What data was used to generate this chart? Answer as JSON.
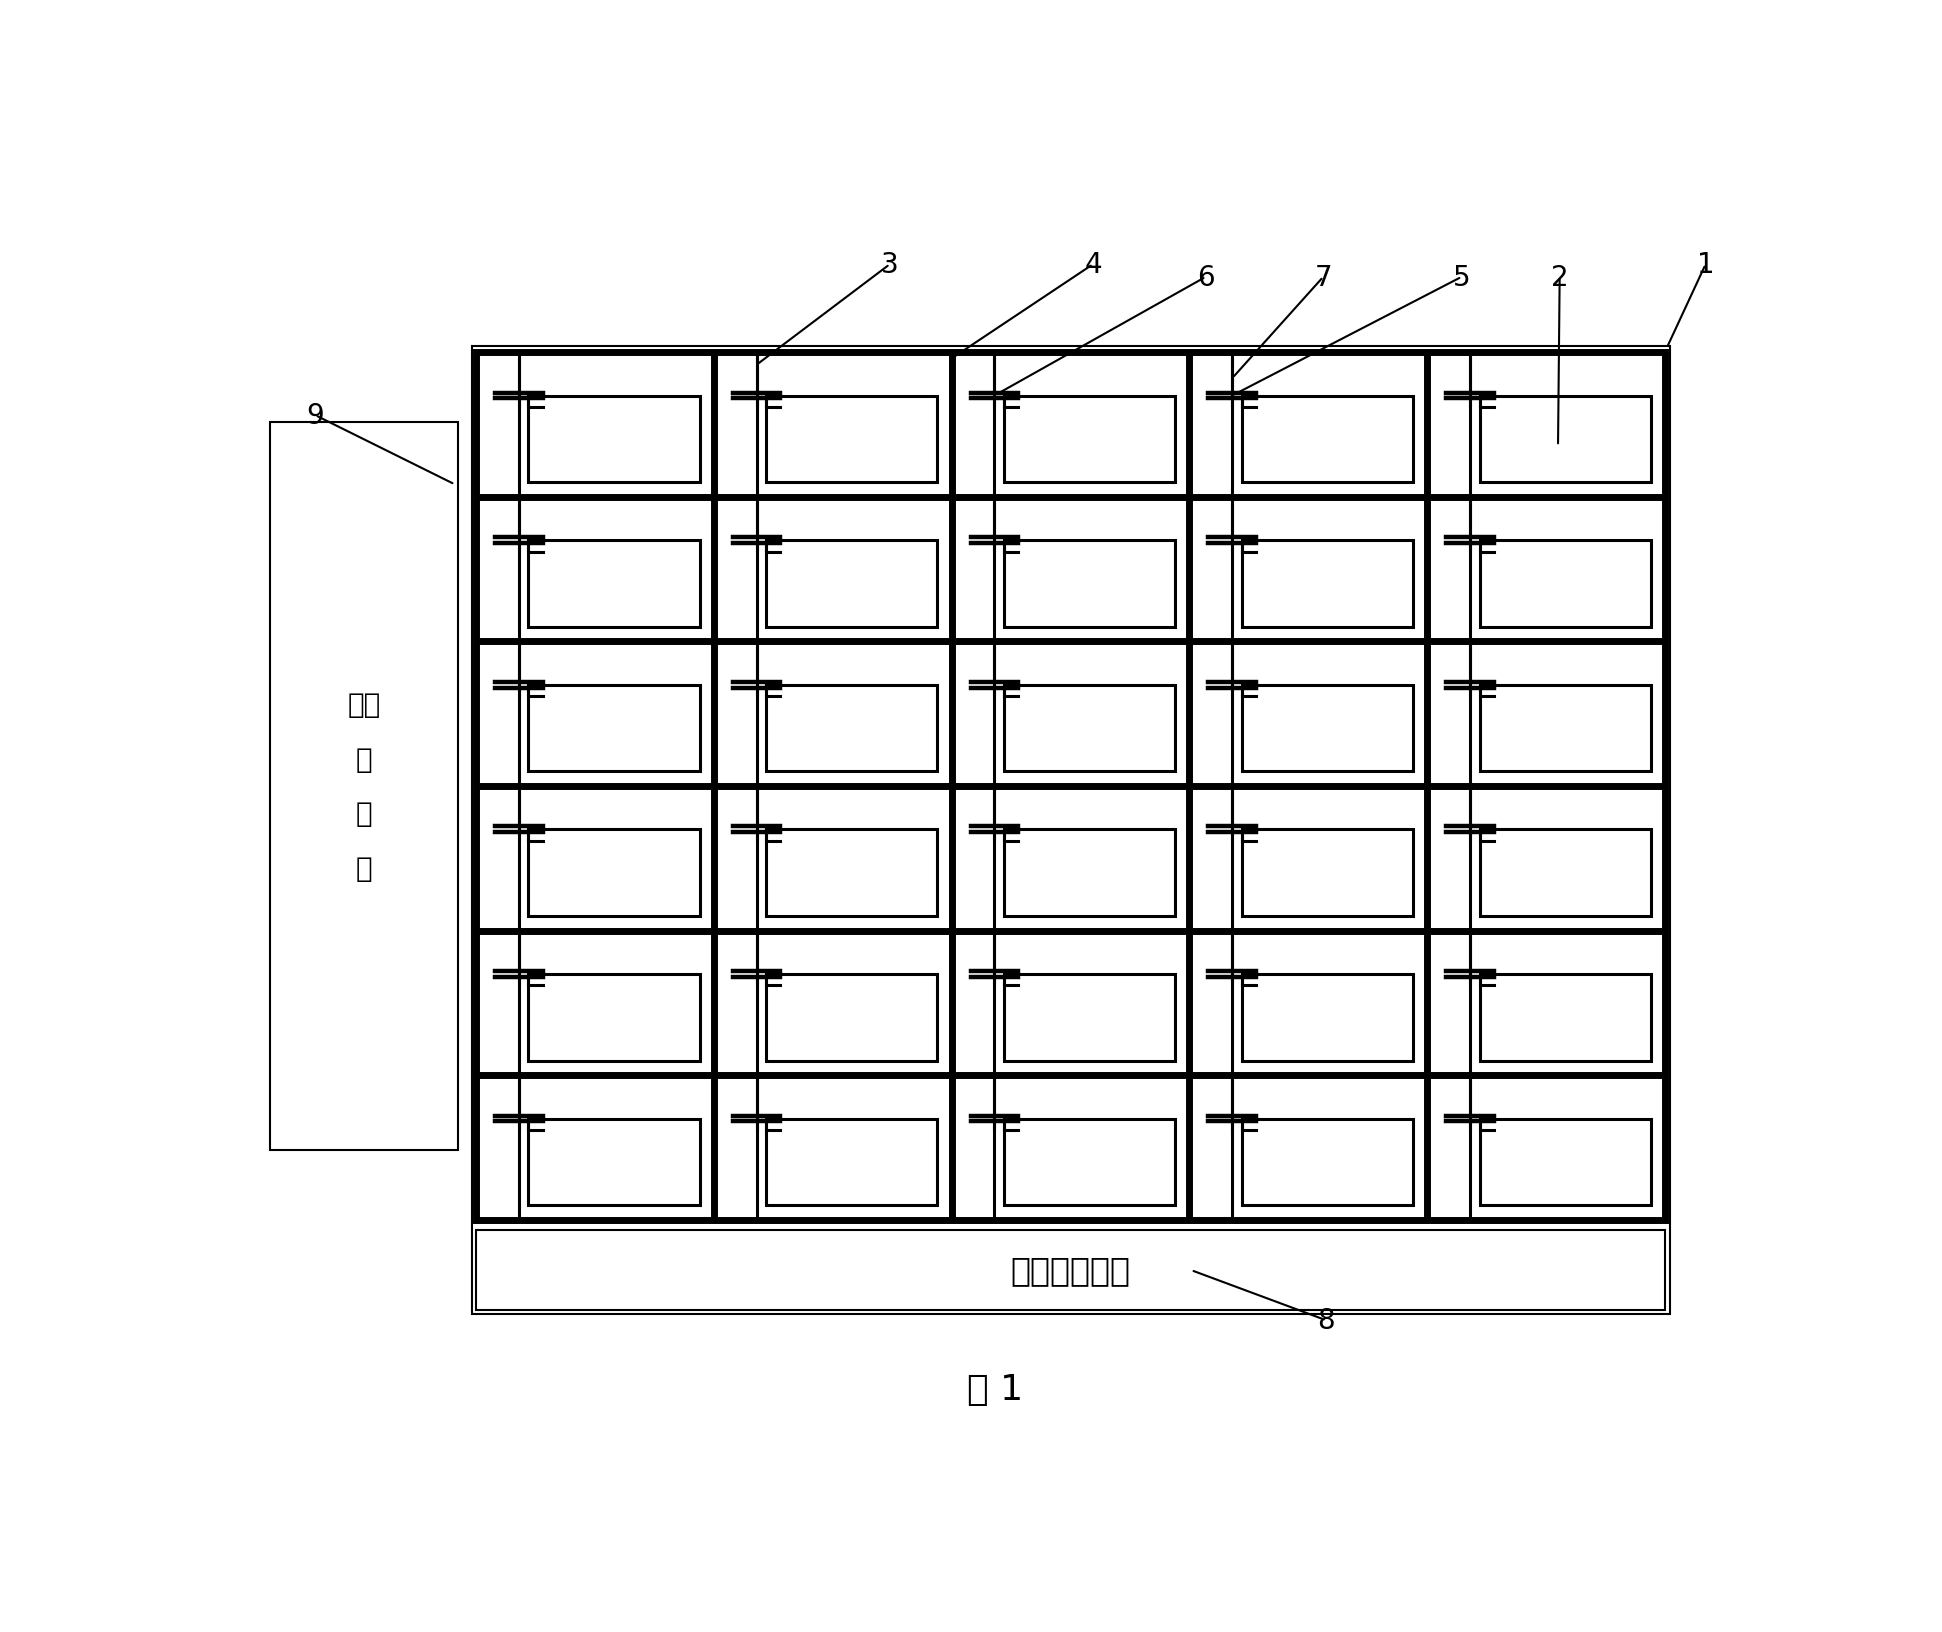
{
  "fig_width": 19.42,
  "fig_height": 16.33,
  "bg_color": "#ffffff",
  "line_color": "#000000",
  "thick_lw": 5.0,
  "medium_lw": 2.2,
  "thin_lw": 1.5,
  "rows": 6,
  "cols": 5,
  "GL": 0.155,
  "GR": 0.945,
  "GT": 0.875,
  "GB": 0.185,
  "scan_driver_label": "扫描\n驱\n动\n器",
  "data_driver_label": "数据驱动芯片",
  "figure_label": "图 1",
  "ann_1_text": "1",
  "ann_2_text": "2",
  "ann_3_text": "3",
  "ann_4_text": "4",
  "ann_5_text": "5",
  "ann_6_text": "6",
  "ann_7_text": "7",
  "ann_8_text": "8",
  "ann_9_text": "9"
}
